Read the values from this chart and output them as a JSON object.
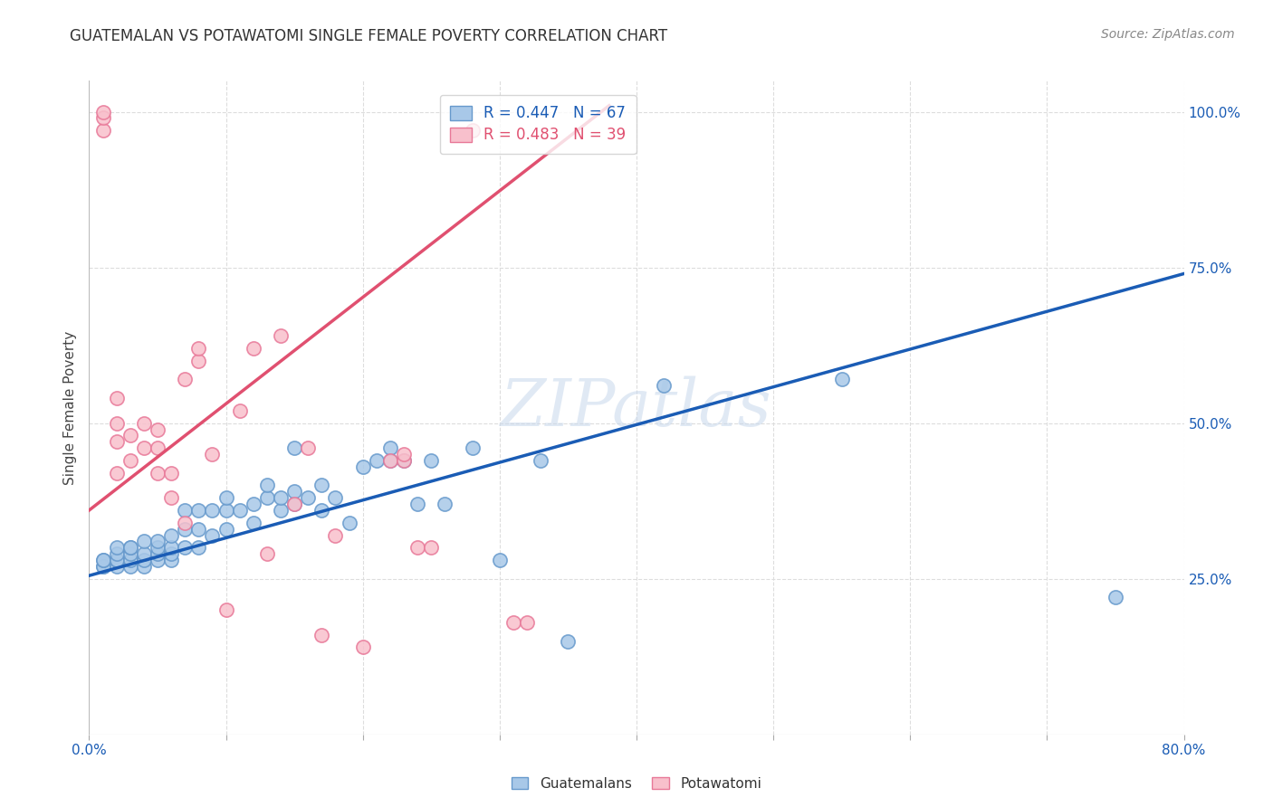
{
  "title": "GUATEMALAN VS POTAWATOMI SINGLE FEMALE POVERTY CORRELATION CHART",
  "source": "Source: ZipAtlas.com",
  "ylabel": "Single Female Poverty",
  "x_min": 0.0,
  "x_max": 0.8,
  "y_min": 0.0,
  "y_max": 1.05,
  "x_ticks": [
    0.0,
    0.1,
    0.2,
    0.3,
    0.4,
    0.5,
    0.6,
    0.7,
    0.8
  ],
  "y_tick_labels_right": [
    "25.0%",
    "50.0%",
    "75.0%",
    "100.0%"
  ],
  "y_tick_vals_right": [
    0.25,
    0.5,
    0.75,
    1.0
  ],
  "blue_color": "#a8c8e8",
  "blue_edge_color": "#6699cc",
  "pink_color": "#f8c0cc",
  "pink_edge_color": "#e87898",
  "blue_line_color": "#1a5cb5",
  "pink_line_color": "#e05070",
  "legend_blue_r": "R = 0.447",
  "legend_blue_n": "N = 67",
  "legend_pink_r": "R = 0.483",
  "legend_pink_n": "N = 39",
  "watermark": "ZIPatlas",
  "blue_scatter_x": [
    0.01,
    0.01,
    0.01,
    0.01,
    0.02,
    0.02,
    0.02,
    0.02,
    0.02,
    0.03,
    0.03,
    0.03,
    0.03,
    0.03,
    0.04,
    0.04,
    0.04,
    0.04,
    0.05,
    0.05,
    0.05,
    0.05,
    0.06,
    0.06,
    0.06,
    0.06,
    0.07,
    0.07,
    0.07,
    0.08,
    0.08,
    0.08,
    0.09,
    0.09,
    0.1,
    0.1,
    0.1,
    0.11,
    0.12,
    0.12,
    0.13,
    0.13,
    0.14,
    0.14,
    0.15,
    0.15,
    0.15,
    0.16,
    0.17,
    0.17,
    0.18,
    0.19,
    0.2,
    0.21,
    0.22,
    0.22,
    0.23,
    0.24,
    0.25,
    0.26,
    0.28,
    0.3,
    0.33,
    0.35,
    0.42,
    0.55,
    0.75
  ],
  "blue_scatter_y": [
    0.27,
    0.27,
    0.28,
    0.28,
    0.27,
    0.28,
    0.28,
    0.29,
    0.3,
    0.27,
    0.28,
    0.29,
    0.3,
    0.3,
    0.27,
    0.28,
    0.29,
    0.31,
    0.28,
    0.29,
    0.3,
    0.31,
    0.28,
    0.29,
    0.3,
    0.32,
    0.3,
    0.33,
    0.36,
    0.3,
    0.33,
    0.36,
    0.32,
    0.36,
    0.33,
    0.36,
    0.38,
    0.36,
    0.34,
    0.37,
    0.38,
    0.4,
    0.36,
    0.38,
    0.37,
    0.39,
    0.46,
    0.38,
    0.36,
    0.4,
    0.38,
    0.34,
    0.43,
    0.44,
    0.44,
    0.46,
    0.44,
    0.37,
    0.44,
    0.37,
    0.46,
    0.28,
    0.44,
    0.15,
    0.56,
    0.57,
    0.22
  ],
  "pink_scatter_x": [
    0.01,
    0.01,
    0.01,
    0.02,
    0.02,
    0.02,
    0.02,
    0.03,
    0.03,
    0.04,
    0.04,
    0.05,
    0.05,
    0.05,
    0.06,
    0.06,
    0.07,
    0.07,
    0.08,
    0.08,
    0.09,
    0.1,
    0.11,
    0.12,
    0.13,
    0.14,
    0.15,
    0.16,
    0.17,
    0.18,
    0.2,
    0.22,
    0.23,
    0.23,
    0.24,
    0.25,
    0.28,
    0.31,
    0.32
  ],
  "pink_scatter_y": [
    0.97,
    0.99,
    1.0,
    0.42,
    0.47,
    0.5,
    0.54,
    0.44,
    0.48,
    0.46,
    0.5,
    0.42,
    0.46,
    0.49,
    0.38,
    0.42,
    0.34,
    0.57,
    0.6,
    0.62,
    0.45,
    0.2,
    0.52,
    0.62,
    0.29,
    0.64,
    0.37,
    0.46,
    0.16,
    0.32,
    0.14,
    0.44,
    0.44,
    0.45,
    0.3,
    0.3,
    0.97,
    0.18,
    0.18
  ],
  "blue_line_x": [
    0.0,
    0.8
  ],
  "blue_line_y": [
    0.255,
    0.74
  ],
  "pink_line_x": [
    0.0,
    0.38
  ],
  "pink_line_y": [
    0.36,
    1.01
  ]
}
